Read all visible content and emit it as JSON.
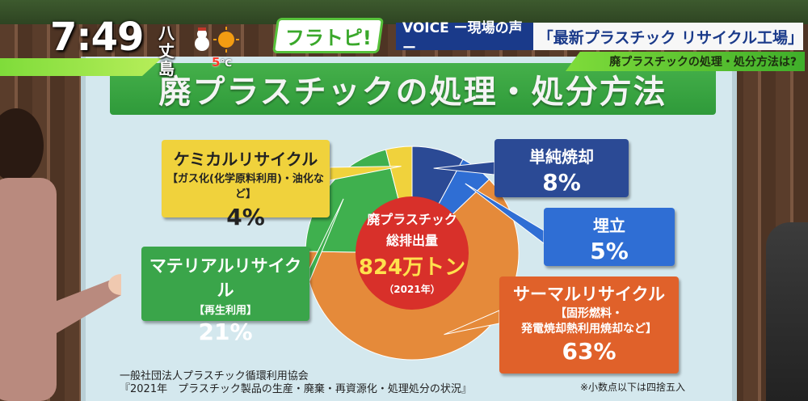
{
  "overlay": {
    "clock": "7:49",
    "location": "八丈島",
    "temperature": "5",
    "temperature_unit": "℃",
    "show_logo": "フラトピ!",
    "banner_tag": "VOICE ー現場の声ー",
    "banner_headline": "「最新プラスチック リサイクル工場」",
    "sub_headline": "廃プラスチックの処理・処分方法は?",
    "weather_icon": "snowman-sun-icon"
  },
  "board": {
    "center": {
      "line1": "廃プラスチック",
      "line2": "総排出量",
      "total": "824万トン",
      "year": "（2021年）"
    },
    "source_line1": "一般社団法人プラスチック循環利用協会",
    "source_line2": "『2021年　プラスチック製品の生産・廃棄・再資源化・処理処分の状況』",
    "note": "※小数点以下は四捨五入"
  },
  "chart_data": {
    "type": "pie",
    "title": "廃プラスチックの処理・処分方法",
    "slices": [
      {
        "name": "単純焼却",
        "value": 8,
        "label": "8%",
        "color": "#2b4a95"
      },
      {
        "name": "埋立",
        "value": 5,
        "label": "5%",
        "color": "#2f6ed4"
      },
      {
        "name": "サーマルリサイクル",
        "detail_line1": "【固形燃料・",
        "detail_line2": "発電焼却熱利用焼却など】",
        "value": 63,
        "label": "63%",
        "color": "#e58a3a"
      },
      {
        "name": "マテリアルリサイクル",
        "detail": "【再生利用】",
        "value": 21,
        "label": "21%",
        "color": "#3fb04e"
      },
      {
        "name": "ケミカルリサイクル",
        "detail": "【ガス化(化学原料利用)・油化など】",
        "value": 4,
        "label": "4%",
        "color": "#f0d23c"
      }
    ]
  }
}
